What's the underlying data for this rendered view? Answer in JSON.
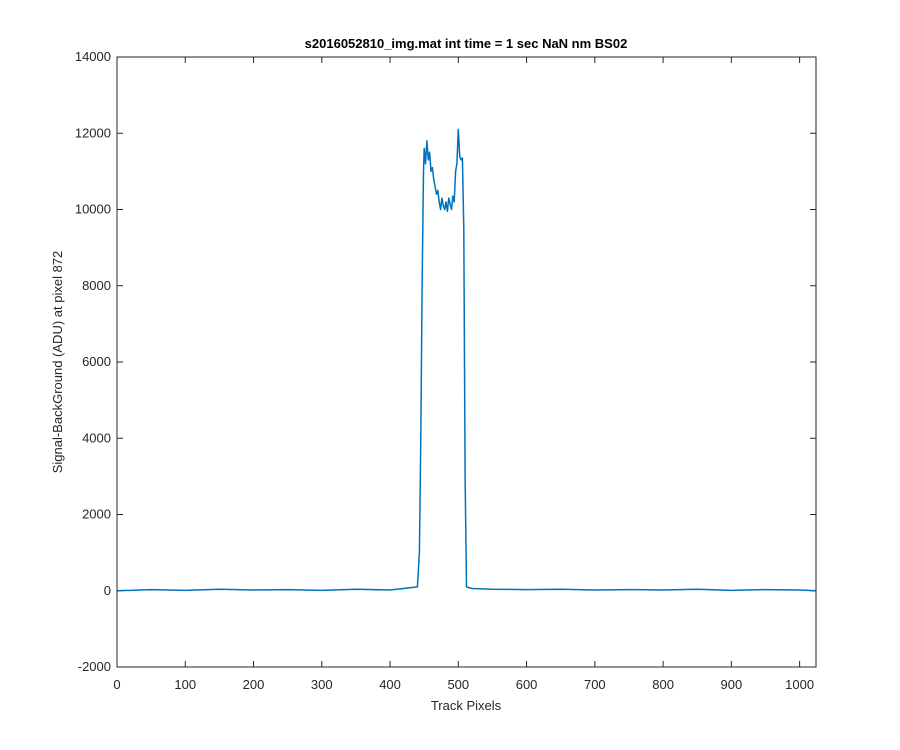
{
  "chart_data": {
    "type": "line",
    "title": "s2016052810_img.mat int time = 1 sec  NaN nm BS02",
    "xlabel": "Track Pixels",
    "ylabel": "Signal-BackGround (ADU) at pixel 872",
    "xlim": [
      0,
      1024
    ],
    "ylim": [
      -2000,
      14000
    ],
    "x_ticks": [
      0,
      100,
      200,
      300,
      400,
      500,
      600,
      700,
      800,
      900,
      1000
    ],
    "y_ticks": [
      -2000,
      0,
      2000,
      4000,
      6000,
      8000,
      10000,
      12000,
      14000
    ],
    "x_tick_labels": [
      "0",
      "100",
      "200",
      "300",
      "400",
      "500",
      "600",
      "700",
      "800",
      "900",
      "1000"
    ],
    "y_tick_labels": [
      "-2000",
      "0",
      "2000",
      "4000",
      "6000",
      "8000",
      "10000",
      "12000",
      "14000"
    ],
    "grid": false,
    "series": [
      {
        "color": "#0072BD",
        "x": [
          0,
          50,
          100,
          150,
          200,
          250,
          300,
          350,
          400,
          440,
          443,
          445,
          447,
          449,
          450,
          452,
          454,
          456,
          458,
          460,
          462,
          464,
          466,
          468,
          470,
          472,
          474,
          476,
          478,
          480,
          482,
          484,
          486,
          488,
          490,
          492,
          494,
          496,
          498,
          500,
          502,
          504,
          506,
          508,
          509,
          510,
          512,
          520,
          550,
          600,
          650,
          700,
          750,
          800,
          850,
          900,
          950,
          1000,
          1024
        ],
        "y": [
          0,
          30,
          10,
          40,
          20,
          30,
          10,
          40,
          20,
          100,
          1000,
          4000,
          8000,
          11000,
          11600,
          11200,
          11800,
          11300,
          11500,
          11000,
          11100,
          10800,
          10600,
          10400,
          10500,
          10200,
          10000,
          10300,
          10100,
          10000,
          10200,
          9950,
          10300,
          10150,
          10000,
          10350,
          10200,
          11000,
          11200,
          12100,
          11400,
          11300,
          11350,
          9500,
          6000,
          3000,
          100,
          60,
          40,
          30,
          40,
          20,
          30,
          20,
          40,
          10,
          30,
          20,
          0
        ]
      }
    ]
  }
}
